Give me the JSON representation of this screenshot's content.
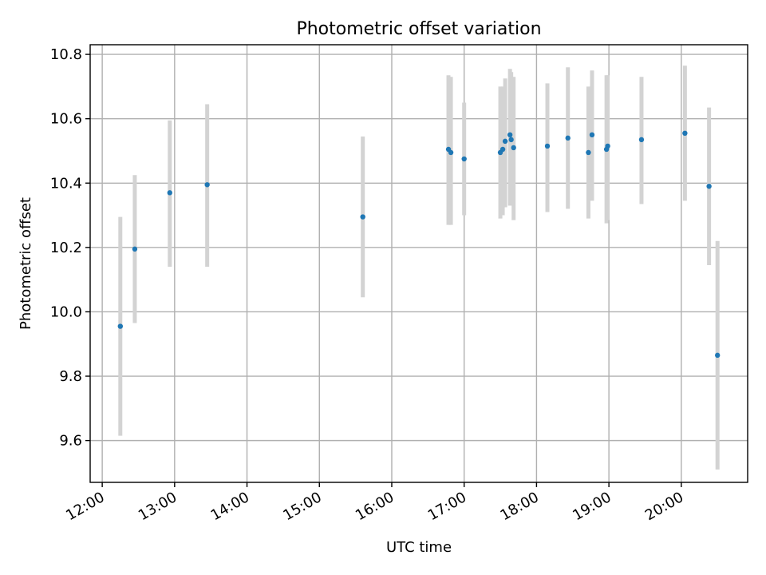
{
  "chart_data": {
    "type": "scatter",
    "title": "Photometric offset variation",
    "xlabel": "UTC time",
    "ylabel": "Photometric offset",
    "xlim": [
      "11:50",
      "20:55"
    ],
    "ylim": [
      9.47,
      10.83
    ],
    "x_ticks": [
      "12:00",
      "13:00",
      "14:00",
      "15:00",
      "16:00",
      "17:00",
      "18:00",
      "19:00",
      "20:00"
    ],
    "y_ticks": [
      "9.6",
      "9.8",
      "10.0",
      "10.2",
      "10.4",
      "10.6",
      "10.8"
    ],
    "grid": true,
    "point_color": "#1f77b4",
    "errorbar_color": "#d3d3d3",
    "points": [
      {
        "x": "12:15",
        "y": 9.955,
        "ylow": 9.615,
        "yhigh": 10.295
      },
      {
        "x": "12:27",
        "y": 10.195,
        "ylow": 9.965,
        "yhigh": 10.425
      },
      {
        "x": "12:56",
        "y": 10.37,
        "ylow": 10.14,
        "yhigh": 10.595
      },
      {
        "x": "13:27",
        "y": 10.395,
        "ylow": 10.14,
        "yhigh": 10.645
      },
      {
        "x": "15:36",
        "y": 10.295,
        "ylow": 10.045,
        "yhigh": 10.545
      },
      {
        "x": "16:47",
        "y": 10.505,
        "ylow": 10.27,
        "yhigh": 10.735
      },
      {
        "x": "16:49",
        "y": 10.495,
        "ylow": 10.27,
        "yhigh": 10.73
      },
      {
        "x": "17:00",
        "y": 10.475,
        "ylow": 10.3,
        "yhigh": 10.65
      },
      {
        "x": "17:30",
        "y": 10.495,
        "ylow": 10.29,
        "yhigh": 10.7
      },
      {
        "x": "17:32",
        "y": 10.505,
        "ylow": 10.3,
        "yhigh": 10.7
      },
      {
        "x": "17:34",
        "y": 10.53,
        "ylow": 10.325,
        "yhigh": 10.725
      },
      {
        "x": "17:38",
        "y": 10.55,
        "ylow": 10.33,
        "yhigh": 10.755
      },
      {
        "x": "17:39",
        "y": 10.535,
        "ylow": 10.33,
        "yhigh": 10.745
      },
      {
        "x": "17:41",
        "y": 10.51,
        "ylow": 10.285,
        "yhigh": 10.73
      },
      {
        "x": "18:09",
        "y": 10.515,
        "ylow": 10.31,
        "yhigh": 10.71
      },
      {
        "x": "18:26",
        "y": 10.54,
        "ylow": 10.32,
        "yhigh": 10.76
      },
      {
        "x": "18:43",
        "y": 10.495,
        "ylow": 10.29,
        "yhigh": 10.7
      },
      {
        "x": "18:46",
        "y": 10.55,
        "ylow": 10.345,
        "yhigh": 10.75
      },
      {
        "x": "18:58",
        "y": 10.505,
        "ylow": 10.275,
        "yhigh": 10.735
      },
      {
        "x": "18:59",
        "y": 10.515,
        "ylow": 10.285,
        "yhigh": 10.735
      },
      {
        "x": "19:27",
        "y": 10.535,
        "ylow": 10.335,
        "yhigh": 10.73
      },
      {
        "x": "20:03",
        "y": 10.555,
        "ylow": 10.345,
        "yhigh": 10.765
      },
      {
        "x": "20:23",
        "y": 10.39,
        "ylow": 10.145,
        "yhigh": 10.635
      },
      {
        "x": "20:30",
        "y": 9.865,
        "ylow": 9.51,
        "yhigh": 10.22
      }
    ]
  }
}
